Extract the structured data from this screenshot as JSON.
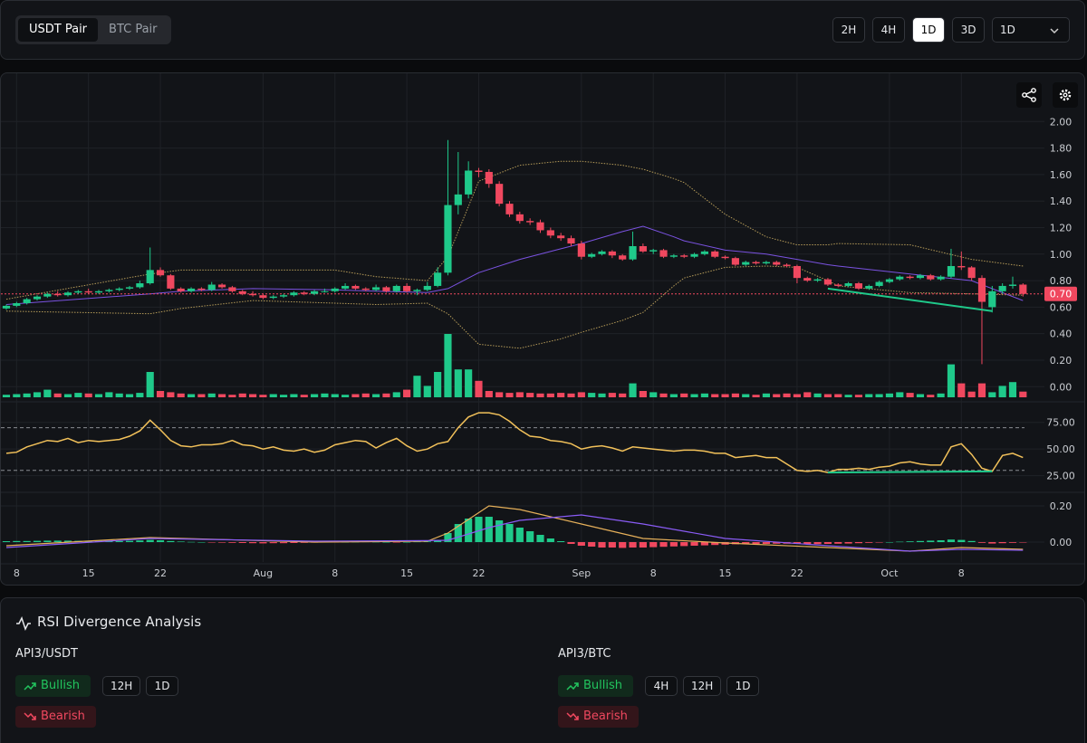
{
  "toolbar": {
    "pair_tabs": [
      "USDT Pair",
      "BTC Pair"
    ],
    "active_pair": 0,
    "intervals": [
      "2H",
      "4H",
      "1D",
      "3D"
    ],
    "active_interval": 2,
    "dropdown": "1D"
  },
  "chart_data": {
    "type": "candlestick",
    "up_color": "#1fc98a",
    "down_color": "#f0485f",
    "xlim": [
      -0.44,
      101
    ],
    "xticks": [
      {
        "value": 1,
        "label": "8"
      },
      {
        "value": 8,
        "label": "15"
      },
      {
        "value": 15,
        "label": "22"
      },
      {
        "value": 25,
        "label": "Aug"
      },
      {
        "value": 32,
        "label": "8"
      },
      {
        "value": 39,
        "label": "15"
      },
      {
        "value": 46,
        "label": "22"
      },
      {
        "value": 56,
        "label": "Sep"
      },
      {
        "value": 63,
        "label": "8"
      },
      {
        "value": 70,
        "label": "15"
      },
      {
        "value": 77,
        "label": "22"
      },
      {
        "value": 86,
        "label": "Oct"
      },
      {
        "value": 93,
        "label": "8"
      }
    ],
    "ylim": [
      -0.08,
      2.2
    ],
    "yticks": [
      {
        "value": 0,
        "label": "0.00"
      },
      {
        "value": 0.2,
        "label": "0.20"
      },
      {
        "value": 0.4,
        "label": "0.40"
      },
      {
        "value": 0.6,
        "label": "0.60"
      },
      {
        "value": 0.8,
        "label": "0.80"
      },
      {
        "value": 1,
        "label": "1.00"
      },
      {
        "value": 1.2,
        "label": "1.20"
      },
      {
        "value": 1.4,
        "label": "1.40"
      },
      {
        "value": 1.6,
        "label": "1.60"
      },
      {
        "value": 1.8,
        "label": "1.80"
      },
      {
        "value": 2,
        "label": "2.00"
      }
    ],
    "grid": true,
    "last_price": {
      "value": 0.7,
      "label": "0.70",
      "color": "#f0485f"
    },
    "candles": [
      [
        0.59,
        0.62,
        0.58,
        0.61
      ],
      [
        0.61,
        0.64,
        0.6,
        0.63
      ],
      [
        0.63,
        0.67,
        0.62,
        0.66
      ],
      [
        0.66,
        0.69,
        0.65,
        0.68
      ],
      [
        0.68,
        0.71,
        0.67,
        0.7
      ],
      [
        0.7,
        0.72,
        0.68,
        0.69
      ],
      [
        0.69,
        0.72,
        0.68,
        0.71
      ],
      [
        0.71,
        0.73,
        0.7,
        0.72
      ],
      [
        0.72,
        0.74,
        0.7,
        0.71
      ],
      [
        0.71,
        0.73,
        0.7,
        0.72
      ],
      [
        0.72,
        0.74,
        0.71,
        0.73
      ],
      [
        0.73,
        0.75,
        0.72,
        0.74
      ],
      [
        0.74,
        0.76,
        0.73,
        0.75
      ],
      [
        0.75,
        0.8,
        0.74,
        0.78
      ],
      [
        0.78,
        1.05,
        0.77,
        0.88
      ],
      [
        0.88,
        0.9,
        0.83,
        0.84
      ],
      [
        0.84,
        0.85,
        0.73,
        0.74
      ],
      [
        0.74,
        0.75,
        0.71,
        0.72
      ],
      [
        0.72,
        0.75,
        0.71,
        0.74
      ],
      [
        0.74,
        0.75,
        0.72,
        0.73
      ],
      [
        0.73,
        0.79,
        0.72,
        0.77
      ],
      [
        0.77,
        0.78,
        0.74,
        0.75
      ],
      [
        0.75,
        0.76,
        0.71,
        0.72
      ],
      [
        0.72,
        0.73,
        0.69,
        0.7
      ],
      [
        0.7,
        0.72,
        0.68,
        0.69
      ],
      [
        0.69,
        0.7,
        0.66,
        0.67
      ],
      [
        0.67,
        0.69,
        0.66,
        0.68
      ],
      [
        0.68,
        0.7,
        0.67,
        0.69
      ],
      [
        0.69,
        0.72,
        0.68,
        0.71
      ],
      [
        0.71,
        0.72,
        0.69,
        0.7
      ],
      [
        0.7,
        0.73,
        0.69,
        0.72
      ],
      [
        0.72,
        0.74,
        0.71,
        0.72
      ],
      [
        0.72,
        0.75,
        0.71,
        0.74
      ],
      [
        0.74,
        0.78,
        0.73,
        0.76
      ],
      [
        0.76,
        0.77,
        0.73,
        0.74
      ],
      [
        0.74,
        0.75,
        0.72,
        0.73
      ],
      [
        0.73,
        0.77,
        0.72,
        0.75
      ],
      [
        0.75,
        0.76,
        0.71,
        0.72
      ],
      [
        0.72,
        0.77,
        0.71,
        0.76
      ],
      [
        0.76,
        0.78,
        0.71,
        0.72
      ],
      [
        0.72,
        0.74,
        0.69,
        0.73
      ],
      [
        0.73,
        0.79,
        0.72,
        0.76
      ],
      [
        0.76,
        0.9,
        0.75,
        0.86
      ],
      [
        0.86,
        1.86,
        0.84,
        1.37
      ],
      [
        1.37,
        1.77,
        1.3,
        1.45
      ],
      [
        1.45,
        1.7,
        1.42,
        1.63
      ],
      [
        1.63,
        1.65,
        1.58,
        1.62
      ],
      [
        1.62,
        1.64,
        1.5,
        1.53
      ],
      [
        1.53,
        1.55,
        1.36,
        1.38
      ],
      [
        1.38,
        1.4,
        1.28,
        1.3
      ],
      [
        1.3,
        1.32,
        1.23,
        1.25
      ],
      [
        1.25,
        1.27,
        1.22,
        1.24
      ],
      [
        1.24,
        1.26,
        1.16,
        1.18
      ],
      [
        1.18,
        1.2,
        1.12,
        1.14
      ],
      [
        1.14,
        1.16,
        1.1,
        1.12
      ],
      [
        1.12,
        1.14,
        1.06,
        1.08
      ],
      [
        1.08,
        1.1,
        0.96,
        0.98
      ],
      [
        0.98,
        1.01,
        0.97,
        1
      ],
      [
        1,
        1.03,
        0.99,
        1.02
      ],
      [
        1.02,
        1.03,
        0.97,
        0.99
      ],
      [
        0.99,
        1,
        0.95,
        0.96
      ],
      [
        0.96,
        1.17,
        0.95,
        1.06
      ],
      [
        1.06,
        1.08,
        1.01,
        1.02
      ],
      [
        1.02,
        1.04,
        1,
        1.03
      ],
      [
        1.03,
        1.04,
        0.97,
        0.98
      ],
      [
        0.98,
        1,
        0.97,
        0.99
      ],
      [
        0.99,
        1,
        0.97,
        0.98
      ],
      [
        0.98,
        1.01,
        0.97,
        1
      ],
      [
        1,
        1.03,
        0.99,
        1.02
      ],
      [
        1.02,
        1.03,
        0.97,
        0.98
      ],
      [
        0.98,
        0.99,
        0.96,
        0.97
      ],
      [
        0.97,
        0.98,
        0.91,
        0.92
      ],
      [
        0.92,
        0.95,
        0.91,
        0.94
      ],
      [
        0.94,
        0.95,
        0.92,
        0.93
      ],
      [
        0.93,
        0.95,
        0.92,
        0.94
      ],
      [
        0.94,
        0.95,
        0.91,
        0.92
      ],
      [
        0.92,
        0.93,
        0.9,
        0.91
      ],
      [
        0.91,
        0.92,
        0.78,
        0.82
      ],
      [
        0.82,
        0.83,
        0.79,
        0.8
      ],
      [
        0.8,
        0.82,
        0.79,
        0.81
      ],
      [
        0.81,
        0.82,
        0.76,
        0.77
      ],
      [
        0.77,
        0.78,
        0.75,
        0.76
      ],
      [
        0.76,
        0.79,
        0.75,
        0.78
      ],
      [
        0.78,
        0.79,
        0.73,
        0.74
      ],
      [
        0.74,
        0.77,
        0.73,
        0.76
      ],
      [
        0.76,
        0.8,
        0.75,
        0.79
      ],
      [
        0.79,
        0.82,
        0.78,
        0.81
      ],
      [
        0.81,
        0.84,
        0.8,
        0.83
      ],
      [
        0.83,
        0.84,
        0.81,
        0.82
      ],
      [
        0.82,
        0.85,
        0.81,
        0.84
      ],
      [
        0.84,
        0.85,
        0.8,
        0.81
      ],
      [
        0.81,
        0.84,
        0.8,
        0.83
      ],
      [
        0.83,
        1.04,
        0.82,
        0.91
      ],
      [
        0.91,
        1.02,
        0.88,
        0.9
      ],
      [
        0.9,
        0.91,
        0.8,
        0.82
      ],
      [
        0.82,
        0.84,
        0.17,
        0.64
      ],
      [
        0.6,
        0.76,
        0.56,
        0.72
      ],
      [
        0.72,
        0.78,
        0.7,
        0.76
      ],
      [
        0.76,
        0.83,
        0.74,
        0.77
      ],
      [
        0.77,
        0.78,
        0.68,
        0.7
      ]
    ],
    "volume_lim": [
      0,
      100
    ],
    "volume": [
      4,
      5,
      6,
      8,
      12,
      6,
      5,
      7,
      6,
      5,
      8,
      6,
      5,
      7,
      40,
      10,
      8,
      6,
      5,
      5,
      6,
      5,
      4,
      6,
      5,
      4,
      5,
      4,
      5,
      4,
      5,
      6,
      5,
      4,
      5,
      6,
      5,
      6,
      8,
      12,
      34,
      18,
      40,
      100,
      44,
      44,
      26,
      10,
      8,
      7,
      8,
      7,
      6,
      6,
      7,
      6,
      8,
      7,
      6,
      7,
      6,
      22,
      10,
      8,
      6,
      5,
      6,
      5,
      6,
      5,
      5,
      6,
      5,
      4,
      6,
      5,
      6,
      5,
      8,
      6,
      5,
      5,
      4,
      4,
      5,
      5,
      6,
      8,
      7,
      5,
      4,
      6,
      52,
      22,
      9,
      22,
      8,
      18,
      24,
      9
    ],
    "bands": {
      "color": "#b49a58",
      "middle_color": "#7a52e0",
      "x": [
        0,
        14,
        17,
        24,
        32,
        36,
        41,
        43,
        46,
        50,
        54,
        56,
        60,
        62,
        65,
        66,
        70,
        74,
        77,
        80,
        81,
        88,
        94,
        99
      ],
      "upper": [
        0.66,
        0.85,
        0.88,
        0.88,
        0.88,
        0.83,
        0.8,
        0.98,
        1.55,
        1.67,
        1.7,
        1.7,
        1.67,
        1.64,
        1.57,
        1.54,
        1.3,
        1.13,
        1.07,
        1.07,
        1.08,
        1.07,
        0.96,
        0.91
      ],
      "middle": [
        0.62,
        0.7,
        0.72,
        0.74,
        0.73,
        0.72,
        0.71,
        0.74,
        0.86,
        0.96,
        1.04,
        1.08,
        1.17,
        1.21,
        1.13,
        1.1,
        1.03,
        1,
        0.96,
        0.92,
        0.91,
        0.85,
        0.8,
        0.65
      ],
      "lower": [
        0.57,
        0.55,
        0.59,
        0.65,
        0.63,
        0.62,
        0.63,
        0.55,
        0.32,
        0.29,
        0.36,
        0.41,
        0.5,
        0.56,
        0.76,
        0.82,
        0.9,
        0.91,
        0.9,
        0.8,
        0.76,
        0.71,
        0.7,
        0.69
      ]
    },
    "divergence": {
      "color": "#1fc98a",
      "x": [
        80,
        96
      ],
      "price": [
        0.74,
        0.57
      ],
      "rsi": [
        28,
        29
      ]
    },
    "rsi": {
      "color": "#f2c15a",
      "ylim": [
        12,
        90
      ],
      "yticks": [
        {
          "value": 25,
          "label": "25.00"
        },
        {
          "value": 50,
          "label": "50.00"
        },
        {
          "value": 75,
          "label": "75.00"
        }
      ],
      "levels": [
        30,
        70
      ],
      "values": [
        46,
        47,
        52,
        55,
        58,
        57,
        60,
        56,
        58,
        57,
        58,
        59,
        62,
        67,
        77,
        68,
        58,
        53,
        52,
        54,
        54,
        55,
        58,
        54,
        53,
        50,
        52,
        49,
        48,
        50,
        47,
        49,
        54,
        56,
        58,
        57,
        51,
        56,
        60,
        53,
        48,
        50,
        55,
        57,
        70,
        80,
        84,
        84,
        82,
        76,
        68,
        62,
        61,
        58,
        57,
        55,
        50,
        52,
        53,
        51,
        48,
        52,
        51,
        50,
        49,
        48,
        49,
        49,
        48,
        46,
        46,
        42,
        43,
        44,
        42,
        42,
        36,
        30,
        29,
        30,
        28,
        31,
        31,
        32,
        31,
        33,
        34,
        37,
        38,
        36,
        35,
        35,
        52,
        55,
        45,
        32,
        29,
        44,
        46,
        42
      ]
    },
    "macd": {
      "macd_color": "#e6b05a",
      "signal_color": "#8a5cf6",
      "ylim": [
        -0.11,
        0.265
      ],
      "yticks": [
        {
          "value": 0,
          "label": "0.00"
        },
        {
          "value": 0.2,
          "label": "0.20"
        }
      ],
      "x": [
        0,
        14,
        30,
        41,
        43,
        47,
        50,
        56,
        62,
        70,
        80,
        88,
        93,
        99
      ],
      "macd": [
        -0.02,
        0.025,
        0,
        0.005,
        0.05,
        0.2,
        0.18,
        0.1,
        0.02,
        -0.005,
        -0.03,
        -0.05,
        -0.03,
        -0.04
      ],
      "signal": [
        -0.03,
        0.02,
        0.005,
        0.008,
        0.01,
        0.08,
        0.12,
        0.15,
        0.1,
        0.02,
        -0.02,
        -0.05,
        -0.04,
        -0.045
      ],
      "histogram": [
        0.005,
        0.006,
        0.006,
        0.007,
        0.008,
        0.008,
        0.008,
        0.007,
        0.007,
        0.007,
        0.006,
        0.006,
        0.007,
        0.009,
        0.012,
        0.01,
        0.006,
        0.003,
        0.001,
        0,
        -0.002,
        -0.003,
        -0.004,
        -0.005,
        -0.006,
        -0.007,
        -0.006,
        -0.006,
        -0.005,
        -0.004,
        -0.003,
        -0.002,
        -0.001,
        0,
        0.001,
        0.002,
        0.001,
        0,
        -0.001,
        0,
        0.002,
        0.004,
        0.012,
        0.05,
        0.1,
        0.13,
        0.14,
        0.14,
        0.12,
        0.1,
        0.08,
        0.06,
        0.04,
        0.02,
        0.005,
        -0.01,
        -0.02,
        -0.025,
        -0.03,
        -0.03,
        -0.032,
        -0.03,
        -0.03,
        -0.028,
        -0.026,
        -0.024,
        -0.022,
        -0.02,
        -0.018,
        -0.016,
        -0.014,
        -0.012,
        -0.011,
        -0.01,
        -0.01,
        -0.009,
        -0.009,
        -0.01,
        -0.011,
        -0.011,
        -0.01,
        -0.009,
        -0.008,
        -0.006,
        -0.004,
        -0.002,
        0,
        0.002,
        0.004,
        0.006,
        0.008,
        0.01,
        0.014,
        0.012,
        0.006,
        -0.004,
        -0.008,
        -0.006,
        -0.004,
        -0.002
      ]
    }
  },
  "analysis": {
    "title": "RSI Divergence Analysis",
    "pairs": [
      {
        "name": "API3/USDT",
        "bullish": "Bullish",
        "bearish": "Bearish",
        "timeframes": [
          "12H",
          "1D"
        ]
      },
      {
        "name": "API3/BTC",
        "bullish": "Bullish",
        "bearish": "Bearish",
        "timeframes": [
          "4H",
          "12H",
          "1D"
        ]
      }
    ]
  }
}
